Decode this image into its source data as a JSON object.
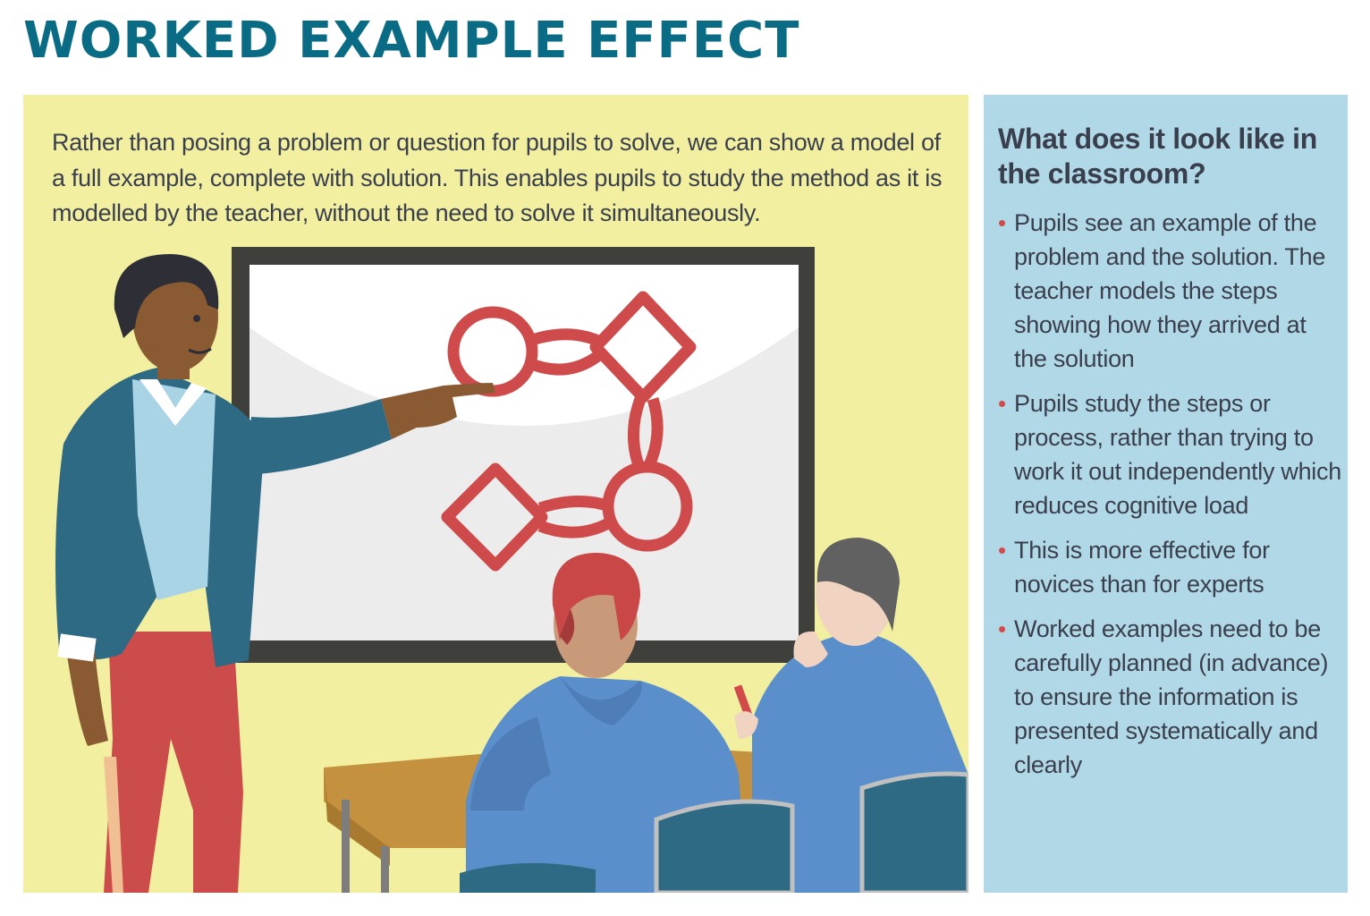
{
  "title": "WORKED EXAMPLE EFFECT",
  "intro": "Rather than posing a problem or question for pupils to solve, we can show a model of a full example, complete with solution. This enables pupils to study the method as it is modelled by the teacher, without the need to solve it simultaneously.",
  "sidebar": {
    "heading": "What does it look like in the classroom?",
    "bullets": [
      "Pupils see an example of the problem and the solution. The teacher models the steps showing how they arrived at the solution",
      "Pupils study the steps or process, rather than trying to work it out independently which reduces cognitive load",
      "This is more effective for novices than for experts",
      "Worked examples need to be carefully planned (in advance) to ensure the information is presented systematically and clearly"
    ]
  },
  "colors": {
    "title": "#0a6b84",
    "panel_left": "#f2f0a0",
    "panel_right": "#b1d8e7",
    "bullet": "#d24a4a",
    "diagram": "#cf4b4b"
  },
  "illustration": {
    "icons": [
      "teacher-figure",
      "whiteboard",
      "flowchart-diagram",
      "student-red-hair",
      "student-grey-hair",
      "desk",
      "chair"
    ]
  }
}
